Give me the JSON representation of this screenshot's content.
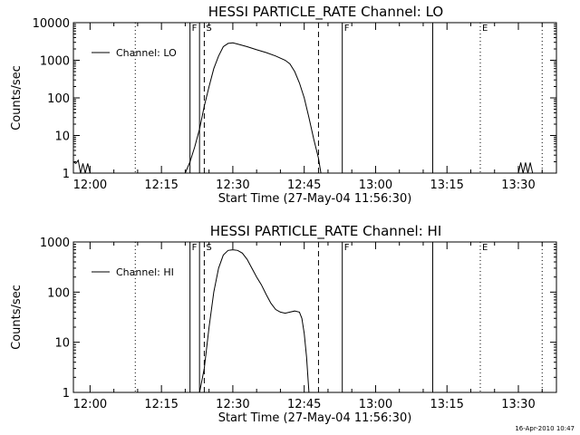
{
  "timestamp": "16-Apr-2010 10:47",
  "chart_data": [
    {
      "type": "line",
      "title": "HESSI PARTICLE_RATE Channel: LO",
      "xlabel": "Start Time (27-May-04 11:56:30)",
      "ylabel": "Counts/sec",
      "yscale": "log",
      "ylim": [
        1,
        10000
      ],
      "y_ticks": [
        1,
        10,
        100,
        1000,
        10000
      ],
      "y_tick_labels": [
        "1",
        "10",
        "100",
        "1000",
        "10000"
      ],
      "xlim": [
        "11:56:30",
        "13:38:00"
      ],
      "x_ticks": [
        "12:00",
        "12:15",
        "12:30",
        "12:45",
        "13:00",
        "13:15",
        "13:30"
      ],
      "legend": {
        "label": "Channel: LO",
        "position": "top-left"
      },
      "grid": false,
      "markers": [
        {
          "time": "12:09:30",
          "style": "dotted",
          "label": ""
        },
        {
          "time": "12:21:00",
          "style": "solid",
          "label": "F"
        },
        {
          "time": "12:23:00",
          "style": "solid",
          "label": ""
        },
        {
          "time": "12:24:00",
          "style": "dashed",
          "label": "S"
        },
        {
          "time": "12:48:00",
          "style": "dashed",
          "label": ""
        },
        {
          "time": "12:53:00",
          "style": "solid",
          "label": "F"
        },
        {
          "time": "13:12:00",
          "style": "solid",
          "label": ""
        },
        {
          "time": "13:22:00",
          "style": "dotted",
          "label": "E"
        },
        {
          "time": "13:35:00",
          "style": "dotted",
          "label": ""
        }
      ],
      "series": [
        {
          "name": "Channel: LO",
          "points": [
            [
              "11:56:30",
              2.0
            ],
            [
              "11:57:00",
              1.8
            ],
            [
              "11:57:30",
              2.2
            ],
            [
              "11:58:00",
              1.0
            ],
            [
              "11:58:30",
              1.8
            ],
            [
              "11:59:00",
              1.0
            ],
            [
              "11:59:30",
              1.8
            ],
            [
              "12:00:00",
              1.0
            ],
            [
              "12:20:00",
              1.0
            ],
            [
              "12:21:00",
              2.0
            ],
            [
              "12:22:00",
              5.0
            ],
            [
              "12:23:00",
              15
            ],
            [
              "12:24:00",
              60
            ],
            [
              "12:25:00",
              200
            ],
            [
              "12:26:00",
              600
            ],
            [
              "12:27:00",
              1300
            ],
            [
              "12:28:00",
              2300
            ],
            [
              "12:29:00",
              2800
            ],
            [
              "12:30:00",
              2900
            ],
            [
              "12:31:00",
              2700
            ],
            [
              "12:33:00",
              2300
            ],
            [
              "12:35:00",
              1900
            ],
            [
              "12:37:00",
              1600
            ],
            [
              "12:39:00",
              1300
            ],
            [
              "12:41:00",
              1000
            ],
            [
              "12:42:00",
              800
            ],
            [
              "12:43:00",
              500
            ],
            [
              "12:44:00",
              250
            ],
            [
              "12:45:00",
              100
            ],
            [
              "12:46:00",
              30
            ],
            [
              "12:47:00",
              8
            ],
            [
              "12:48:00",
              2.5
            ],
            [
              "12:48:30",
              1.0
            ],
            [
              "13:30:00",
              1.0
            ],
            [
              "13:30:30",
              1.9
            ],
            [
              "13:31:00",
              1.0
            ],
            [
              "13:31:30",
              1.9
            ],
            [
              "13:32:00",
              1.0
            ],
            [
              "13:32:30",
              1.9
            ],
            [
              "13:33:00",
              1.0
            ]
          ]
        }
      ]
    },
    {
      "type": "line",
      "title": "HESSI PARTICLE_RATE Channel: HI",
      "xlabel": "Start Time (27-May-04 11:56:30)",
      "ylabel": "Counts/sec",
      "yscale": "log",
      "ylim": [
        1,
        1000
      ],
      "y_ticks": [
        1,
        10,
        100,
        1000
      ],
      "y_tick_labels": [
        "1",
        "10",
        "100",
        "1000"
      ],
      "xlim": [
        "11:56:30",
        "13:38:00"
      ],
      "x_ticks": [
        "12:00",
        "12:15",
        "12:30",
        "12:45",
        "13:00",
        "13:15",
        "13:30"
      ],
      "legend": {
        "label": "Channel: HI",
        "position": "top-left"
      },
      "grid": false,
      "markers": [
        {
          "time": "12:09:30",
          "style": "dotted",
          "label": ""
        },
        {
          "time": "12:21:00",
          "style": "solid",
          "label": "F"
        },
        {
          "time": "12:23:00",
          "style": "solid",
          "label": ""
        },
        {
          "time": "12:24:00",
          "style": "dashed",
          "label": "S"
        },
        {
          "time": "12:48:00",
          "style": "dashed",
          "label": ""
        },
        {
          "time": "12:53:00",
          "style": "solid",
          "label": "F"
        },
        {
          "time": "13:12:00",
          "style": "solid",
          "label": ""
        },
        {
          "time": "13:22:00",
          "style": "dotted",
          "label": "E"
        },
        {
          "time": "13:35:00",
          "style": "dotted",
          "label": ""
        }
      ],
      "series": [
        {
          "name": "Channel: HI",
          "points": [
            [
              "12:23:00",
              1.0
            ],
            [
              "12:24:00",
              3
            ],
            [
              "12:25:00",
              20
            ],
            [
              "12:26:00",
              100
            ],
            [
              "12:27:00",
              300
            ],
            [
              "12:28:00",
              550
            ],
            [
              "12:29:00",
              680
            ],
            [
              "12:30:00",
              700
            ],
            [
              "12:31:00",
              680
            ],
            [
              "12:32:00",
              600
            ],
            [
              "12:33:00",
              450
            ],
            [
              "12:34:00",
              300
            ],
            [
              "12:35:00",
              200
            ],
            [
              "12:36:00",
              140
            ],
            [
              "12:37:00",
              90
            ],
            [
              "12:38:00",
              60
            ],
            [
              "12:39:00",
              45
            ],
            [
              "12:40:00",
              40
            ],
            [
              "12:41:00",
              38
            ],
            [
              "12:42:00",
              40
            ],
            [
              "12:43:00",
              42
            ],
            [
              "12:44:00",
              40
            ],
            [
              "12:44:30",
              30
            ],
            [
              "12:45:00",
              15
            ],
            [
              "12:45:30",
              5
            ],
            [
              "12:46:00",
              1.0
            ]
          ]
        }
      ]
    }
  ]
}
